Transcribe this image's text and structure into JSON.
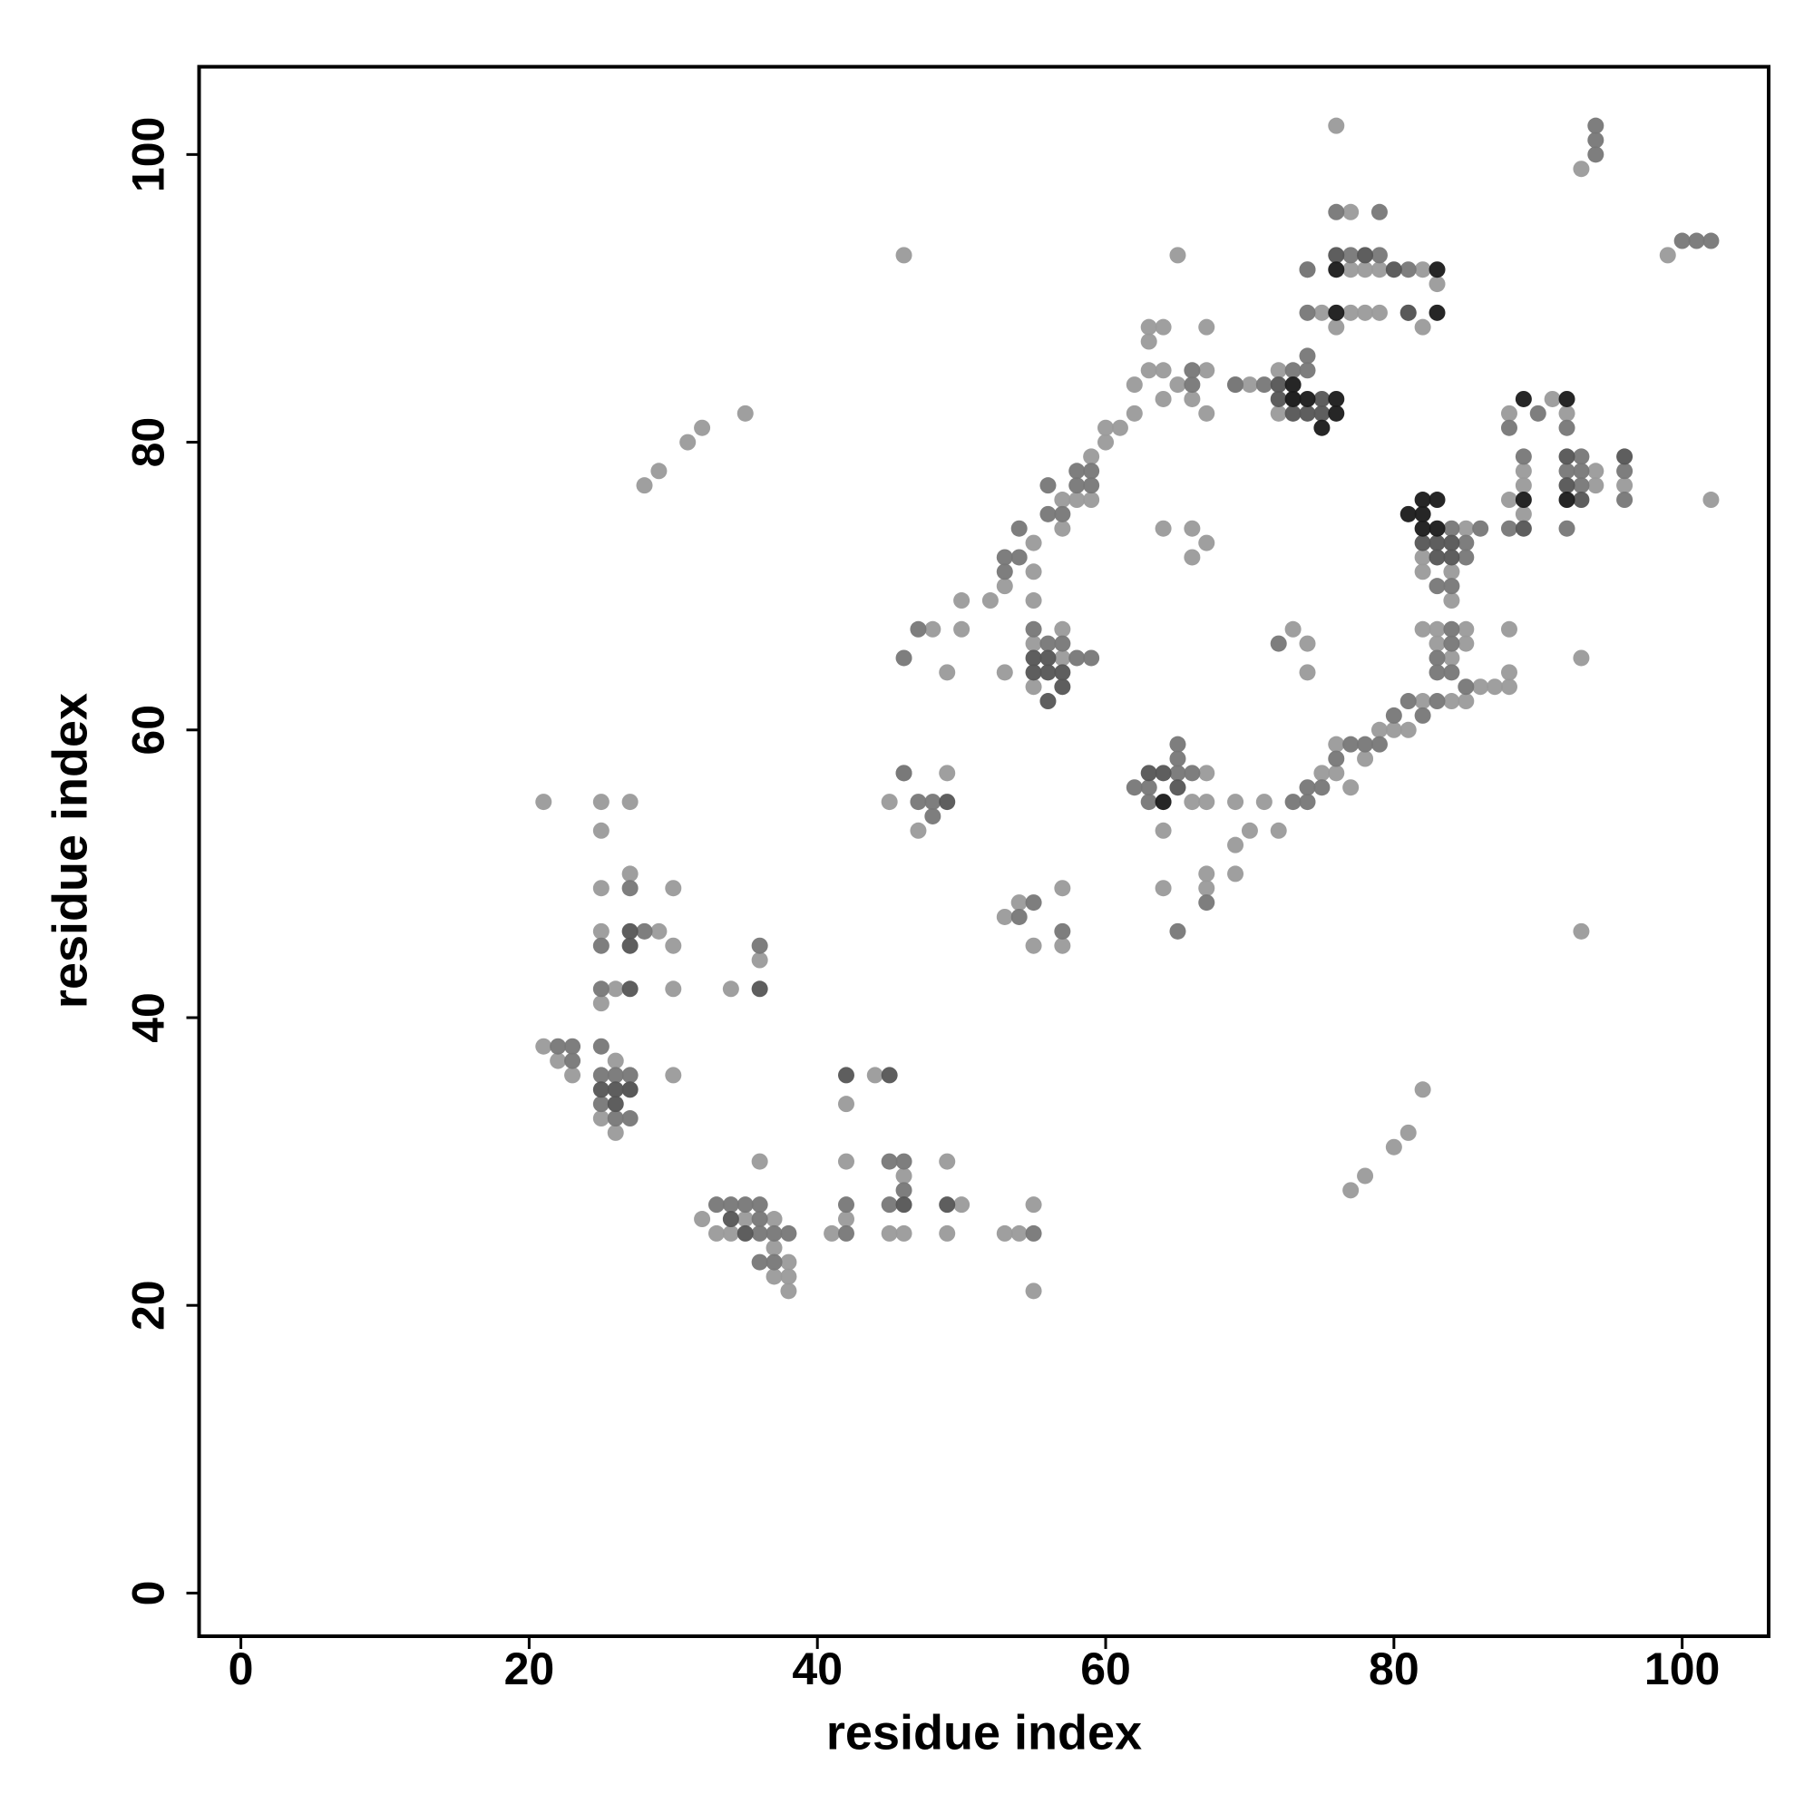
{
  "chart_data": {
    "type": "scatter",
    "xlabel": "residue index",
    "ylabel": "residue index",
    "xlim": [
      -2.9,
      106
    ],
    "ylim": [
      -3,
      106.1
    ],
    "xticks": [
      0,
      20,
      40,
      60,
      80,
      100
    ],
    "yticks": [
      0,
      20,
      40,
      60,
      80,
      100
    ],
    "series": [
      {
        "color": "#9a9a9a",
        "x": [
          21,
          25,
          25,
          27,
          27,
          25,
          25,
          30,
          29,
          30,
          26,
          25,
          30,
          21,
          22,
          23,
          25,
          26,
          26,
          27,
          30,
          34,
          36,
          36,
          32,
          33,
          34,
          35,
          37,
          37,
          38,
          38,
          37,
          38,
          41,
          42,
          42,
          42,
          44,
          45,
          46,
          46,
          49,
          49,
          50,
          53,
          54,
          55,
          55,
          55,
          57,
          57,
          53,
          54,
          28,
          29,
          31,
          32,
          35,
          46,
          45,
          46,
          47,
          49,
          49,
          50,
          50,
          48,
          52,
          53,
          53,
          55,
          55,
          55,
          55,
          55,
          57,
          57,
          57,
          57,
          58,
          59,
          59,
          60,
          60,
          61,
          62,
          62,
          63,
          63,
          63,
          64,
          64,
          64,
          65,
          65,
          66,
          67,
          67,
          67,
          64,
          66,
          66,
          67,
          64,
          64,
          67,
          67,
          67,
          66,
          67,
          69,
          69,
          69,
          70,
          71,
          72,
          73,
          74,
          74,
          75,
          76,
          76,
          77,
          78,
          79,
          80,
          81,
          82,
          82,
          83,
          83,
          84,
          84,
          85,
          85,
          85,
          86,
          87,
          88,
          88,
          88,
          82,
          82,
          84,
          84,
          85,
          88,
          89,
          89,
          89,
          88,
          91,
          92,
          94,
          94,
          96,
          93,
          93,
          99,
          93,
          102,
          77,
          78,
          80,
          81,
          82,
          76,
          76,
          77,
          78,
          79,
          77,
          78,
          77,
          79,
          82,
          82,
          81,
          83,
          75,
          74,
          73,
          72,
          70,
          69,
          72
        ],
        "values": [
          55,
          53,
          55,
          55,
          50,
          49,
          46,
          49,
          46,
          45,
          42,
          41,
          42,
          38,
          37,
          36,
          33,
          32,
          37,
          35,
          36,
          42,
          44,
          30,
          26,
          25,
          25,
          26,
          26,
          24,
          23,
          22,
          22,
          21,
          25,
          26,
          34,
          30,
          36,
          25,
          25,
          29,
          30,
          25,
          27,
          25,
          25,
          27,
          21,
          45,
          45,
          49,
          47,
          48,
          77,
          78,
          80,
          81,
          82,
          93,
          55,
          57,
          53,
          57,
          64,
          67,
          69,
          67,
          69,
          64,
          70,
          71,
          69,
          73,
          66,
          63,
          67,
          65,
          74,
          76,
          76,
          76,
          79,
          80,
          81,
          81,
          82,
          84,
          85,
          87,
          88,
          88,
          85,
          83,
          84,
          93,
          83,
          82,
          85,
          88,
          74,
          74,
          72,
          73,
          53,
          49,
          49,
          50,
          57,
          55,
          55,
          50,
          52,
          55,
          53,
          55,
          53,
          67,
          66,
          64,
          57,
          57,
          59,
          56,
          58,
          60,
          60,
          60,
          62,
          67,
          67,
          66,
          65,
          62,
          62,
          67,
          66,
          63,
          63,
          63,
          64,
          67,
          71,
          72,
          69,
          71,
          74,
          76,
          75,
          77,
          78,
          82,
          83,
          82,
          78,
          77,
          77,
          65,
          46,
          93,
          99,
          76,
          28,
          29,
          31,
          32,
          35,
          102,
          88,
          89,
          89,
          89,
          96,
          92,
          92,
          92,
          92,
          88,
          89,
          91,
          89,
          92,
          83,
          82,
          84,
          84,
          85
        ]
      },
      {
        "color": "#777777",
        "x": [
          25,
          25,
          27,
          28,
          22,
          23,
          23,
          25,
          25,
          26,
          27,
          25,
          26,
          27,
          36,
          33,
          34,
          35,
          36,
          36,
          36,
          37,
          38,
          36,
          37,
          42,
          42,
          45,
          46,
          46,
          45,
          46,
          47,
          48,
          48,
          47,
          54,
          55,
          55,
          53,
          53,
          54,
          54,
          56,
          56,
          57,
          58,
          58,
          59,
          59,
          55,
          56,
          57,
          58,
          59,
          57,
          63,
          62,
          63,
          65,
          65,
          65,
          66,
          65,
          67,
          66,
          66,
          69,
          71,
          74,
          73,
          74,
          72,
          73,
          74,
          74,
          75,
          76,
          77,
          78,
          79,
          80,
          81,
          82,
          83,
          83,
          84,
          83,
          84,
          84,
          85,
          84,
          83,
          85,
          85,
          86,
          84,
          88,
          88,
          89,
          90,
          92,
          92,
          92,
          93,
          93,
          93,
          96,
          96,
          94,
          94,
          94,
          100,
          101,
          102,
          76,
          79,
          77,
          79,
          81,
          74,
          74,
          46
        ],
        "values": [
          45,
          42,
          49,
          46,
          38,
          38,
          37,
          38,
          36,
          36,
          36,
          34,
          33,
          33,
          45,
          27,
          27,
          27,
          27,
          26,
          25,
          25,
          25,
          23,
          23,
          27,
          25,
          30,
          30,
          28,
          27,
          57,
          55,
          55,
          54,
          67,
          47,
          48,
          25,
          72,
          71,
          74,
          72,
          77,
          75,
          75,
          77,
          78,
          77,
          78,
          67,
          66,
          66,
          65,
          65,
          46,
          55,
          56,
          56,
          58,
          59,
          57,
          57,
          46,
          48,
          84,
          85,
          84,
          84,
          86,
          85,
          85,
          66,
          55,
          55,
          56,
          56,
          58,
          59,
          59,
          59,
          61,
          62,
          61,
          62,
          64,
          64,
          65,
          66,
          67,
          63,
          70,
          70,
          72,
          73,
          74,
          74,
          74,
          81,
          79,
          82,
          74,
          81,
          78,
          79,
          78,
          77,
          78,
          76,
          100,
          101,
          102,
          94,
          94,
          94,
          96,
          96,
          93,
          93,
          92,
          89,
          92,
          65
        ]
      },
      {
        "color": "#555555",
        "x": [
          27,
          27,
          27,
          25,
          26,
          27,
          26,
          36,
          34,
          35,
          42,
          45,
          46,
          49,
          49,
          55,
          56,
          56,
          57,
          57,
          56,
          55,
          63,
          64,
          65,
          72,
          73,
          74,
          72,
          76,
          78,
          80,
          81,
          82,
          83,
          83,
          84,
          84,
          89,
          92,
          92,
          93,
          96,
          75,
          75
        ],
        "values": [
          46,
          45,
          42,
          35,
          35,
          35,
          34,
          42,
          26,
          25,
          36,
          36,
          27,
          27,
          55,
          64,
          64,
          65,
          64,
          63,
          62,
          65,
          57,
          57,
          56,
          84,
          82,
          82,
          83,
          93,
          93,
          92,
          89,
          73,
          73,
          72,
          72,
          73,
          74,
          77,
          79,
          76,
          79,
          83,
          82
        ]
      },
      {
        "color": "#1a1a1a",
        "x": [
          64,
          73,
          73,
          74,
          75,
          76,
          76,
          76,
          76,
          83,
          83,
          81,
          82,
          83,
          82,
          83,
          82,
          89,
          92,
          89,
          92
        ],
        "values": [
          55,
          84,
          83,
          83,
          81,
          83,
          82,
          92,
          89,
          92,
          89,
          75,
          76,
          76,
          74,
          74,
          75,
          83,
          83,
          76,
          76
        ]
      }
    ]
  }
}
